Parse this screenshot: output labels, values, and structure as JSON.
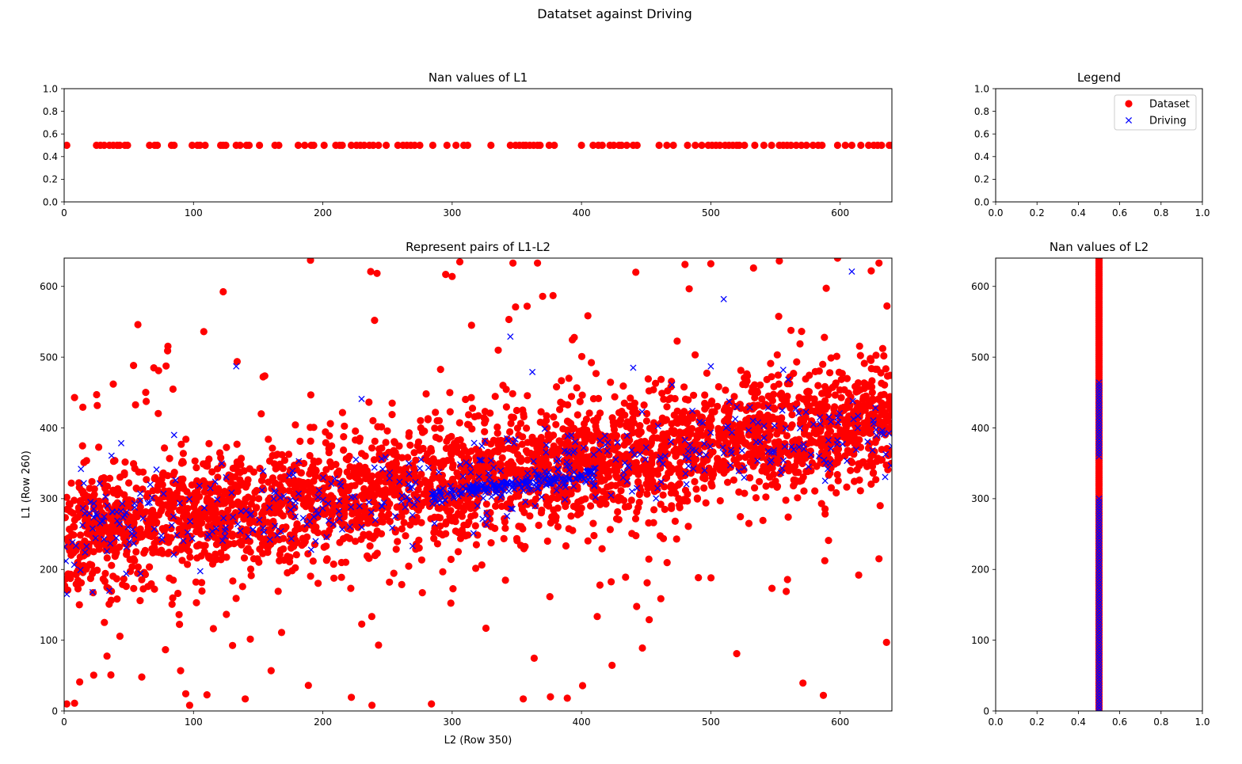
{
  "figure": {
    "suptitle": "Datatset against Driving"
  },
  "colors": {
    "dataset": "#ff0000",
    "driving": "#0000ff",
    "axes": "#000000",
    "background": "#ffffff"
  },
  "chart_data": [
    {
      "id": "nan-l1",
      "type": "scatter",
      "title": "Nan values of L1",
      "xlabel": "",
      "ylabel": "",
      "xlim": [
        0,
        640
      ],
      "ylim": [
        0,
        1
      ],
      "xticks": [
        0,
        100,
        200,
        300,
        400,
        500,
        600
      ],
      "yticks": [
        0.0,
        0.2,
        0.4,
        0.6,
        0.8,
        1.0
      ],
      "grid": false,
      "series": [
        {
          "name": "Dataset",
          "marker": "circle",
          "color": "#ff0000",
          "y_constant": 0.5,
          "x": [
            2,
            25,
            28,
            31,
            35,
            38,
            41,
            43,
            47,
            49,
            66,
            70,
            72,
            83,
            85,
            99,
            103,
            105,
            109,
            121,
            123,
            125,
            133,
            136,
            141,
            143,
            151,
            163,
            166,
            181,
            186,
            191,
            193,
            201,
            210,
            213,
            215,
            222,
            226,
            229,
            232,
            236,
            239,
            243,
            249,
            258,
            262,
            265,
            268,
            271,
            275,
            285,
            296,
            303,
            309,
            312,
            330,
            345,
            349,
            352,
            355,
            357,
            360,
            363,
            366,
            368,
            375,
            379,
            400,
            409,
            413,
            416,
            422,
            425,
            429,
            431,
            435,
            440,
            443,
            460,
            466,
            471,
            482,
            488,
            493,
            498,
            501,
            504,
            507,
            511,
            514,
            517,
            520,
            522,
            526,
            534,
            541,
            547,
            553,
            556,
            559,
            562,
            566,
            570,
            574,
            579,
            583,
            586,
            598,
            604,
            609,
            616,
            622,
            626,
            629,
            632,
            638,
            640
          ]
        }
      ]
    },
    {
      "id": "legend-panel",
      "type": "scatter",
      "title": "Legend",
      "xlabel": "",
      "ylabel": "",
      "xlim": [
        0,
        1
      ],
      "ylim": [
        0,
        1
      ],
      "xticks": [
        0.0,
        0.2,
        0.4,
        0.6,
        0.8,
        1.0
      ],
      "yticks": [
        0.0,
        0.2,
        0.4,
        0.6,
        0.8,
        1.0
      ],
      "grid": false,
      "legend": {
        "position": "top-right",
        "entries": [
          {
            "label": "Dataset",
            "marker": "circle",
            "color": "#ff0000"
          },
          {
            "label": "Driving",
            "marker": "x",
            "color": "#0000ff"
          }
        ]
      },
      "series": []
    },
    {
      "id": "pairs-l1-l2",
      "type": "scatter",
      "title": "Represent pairs of L1-L2",
      "xlabel": "L2 (Row 350)",
      "ylabel": "L1 (Row 260)",
      "xlim": [
        0,
        640
      ],
      "ylim": [
        0,
        640
      ],
      "xticks": [
        0,
        100,
        200,
        300,
        400,
        500,
        600
      ],
      "yticks": [
        0,
        100,
        200,
        300,
        400,
        500,
        600
      ],
      "grid": false,
      "series": [
        {
          "name": "Dataset",
          "marker": "circle",
          "color": "#ff0000",
          "cloud": {
            "count": 3400,
            "x_range": [
              0,
              640
            ],
            "trend_intercept": 250,
            "trend_slope": 0.25,
            "spread": 42,
            "outlier_fraction": 0.09,
            "outlier_spread": 130,
            "clip_y": [
              0,
              640
            ],
            "seed": 7
          },
          "points": [
            [
              2,
              10
            ],
            [
              8,
              11
            ],
            [
              57,
              546
            ],
            [
              108,
              536
            ],
            [
              80,
              509
            ],
            [
              73,
              481
            ],
            [
              38,
              462
            ],
            [
              8,
              443
            ],
            [
              237,
              621
            ],
            [
              240,
              552
            ],
            [
              300,
              614
            ],
            [
              295,
              617
            ],
            [
              347,
              633
            ],
            [
              366,
              633
            ],
            [
              349,
              571
            ],
            [
              370,
              586
            ],
            [
              358,
              572
            ],
            [
              315,
              545
            ],
            [
              378,
              587
            ],
            [
              442,
              620
            ],
            [
              480,
              631
            ],
            [
              500,
              632
            ],
            [
              533,
              626
            ],
            [
              553,
              636
            ],
            [
              598,
              640
            ],
            [
              624,
              622
            ],
            [
              630,
              633
            ],
            [
              97,
              8
            ],
            [
              140,
              17
            ],
            [
              238,
              8
            ],
            [
              284,
              10
            ],
            [
              587,
              22
            ],
            [
              376,
              20
            ],
            [
              389,
              18
            ],
            [
              355,
              17
            ],
            [
              12,
              41
            ],
            [
              60,
              48
            ],
            [
              90,
              57
            ],
            [
              160,
              57
            ],
            [
              520,
              81
            ],
            [
              630,
              215
            ]
          ]
        },
        {
          "name": "Driving",
          "marker": "x",
          "color": "#0000ff",
          "cloud": {
            "count": 430,
            "x_range": [
              0,
              640
            ],
            "trend_intercept": 255,
            "trend_slope": 0.22,
            "spread": 32,
            "dense_band": {
              "x_range": [
                285,
                410
              ],
              "count": 190,
              "y_start": 305,
              "y_end": 335,
              "spread": 6
            },
            "clip_y": [
              0,
              640
            ],
            "seed": 11
          },
          "points": [
            [
              2,
              165
            ],
            [
              13,
              342
            ],
            [
              133,
              487
            ],
            [
              230,
              441
            ],
            [
              345,
              529
            ],
            [
              362,
              479
            ],
            [
              510,
              582
            ],
            [
              609,
              621
            ],
            [
              500,
              487
            ],
            [
              556,
              482
            ],
            [
              470,
              461
            ],
            [
              440,
              485
            ],
            [
              85,
              390
            ],
            [
              22,
              168
            ],
            [
              35,
              170
            ],
            [
              48,
              194
            ]
          ]
        }
      ]
    },
    {
      "id": "nan-l2",
      "type": "scatter",
      "title": "Nan values of L2",
      "xlabel": "",
      "ylabel": "",
      "xlim": [
        0,
        1
      ],
      "ylim": [
        0,
        640
      ],
      "xticks": [
        0.0,
        0.2,
        0.4,
        0.6,
        0.8,
        1.0
      ],
      "yticks": [
        0,
        100,
        200,
        300,
        400,
        500,
        600
      ],
      "grid": false,
      "series": [
        {
          "name": "Dataset",
          "marker": "circle",
          "color": "#ff0000",
          "x_constant": 0.5,
          "y_range": [
            0,
            640
          ],
          "step": 3
        },
        {
          "name": "Driving",
          "marker": "x",
          "color": "#0000ff",
          "x_constant": 0.5,
          "y_segments": [
            [
              0,
              300
            ],
            [
              360,
              465
            ]
          ],
          "step": 4
        }
      ]
    }
  ]
}
